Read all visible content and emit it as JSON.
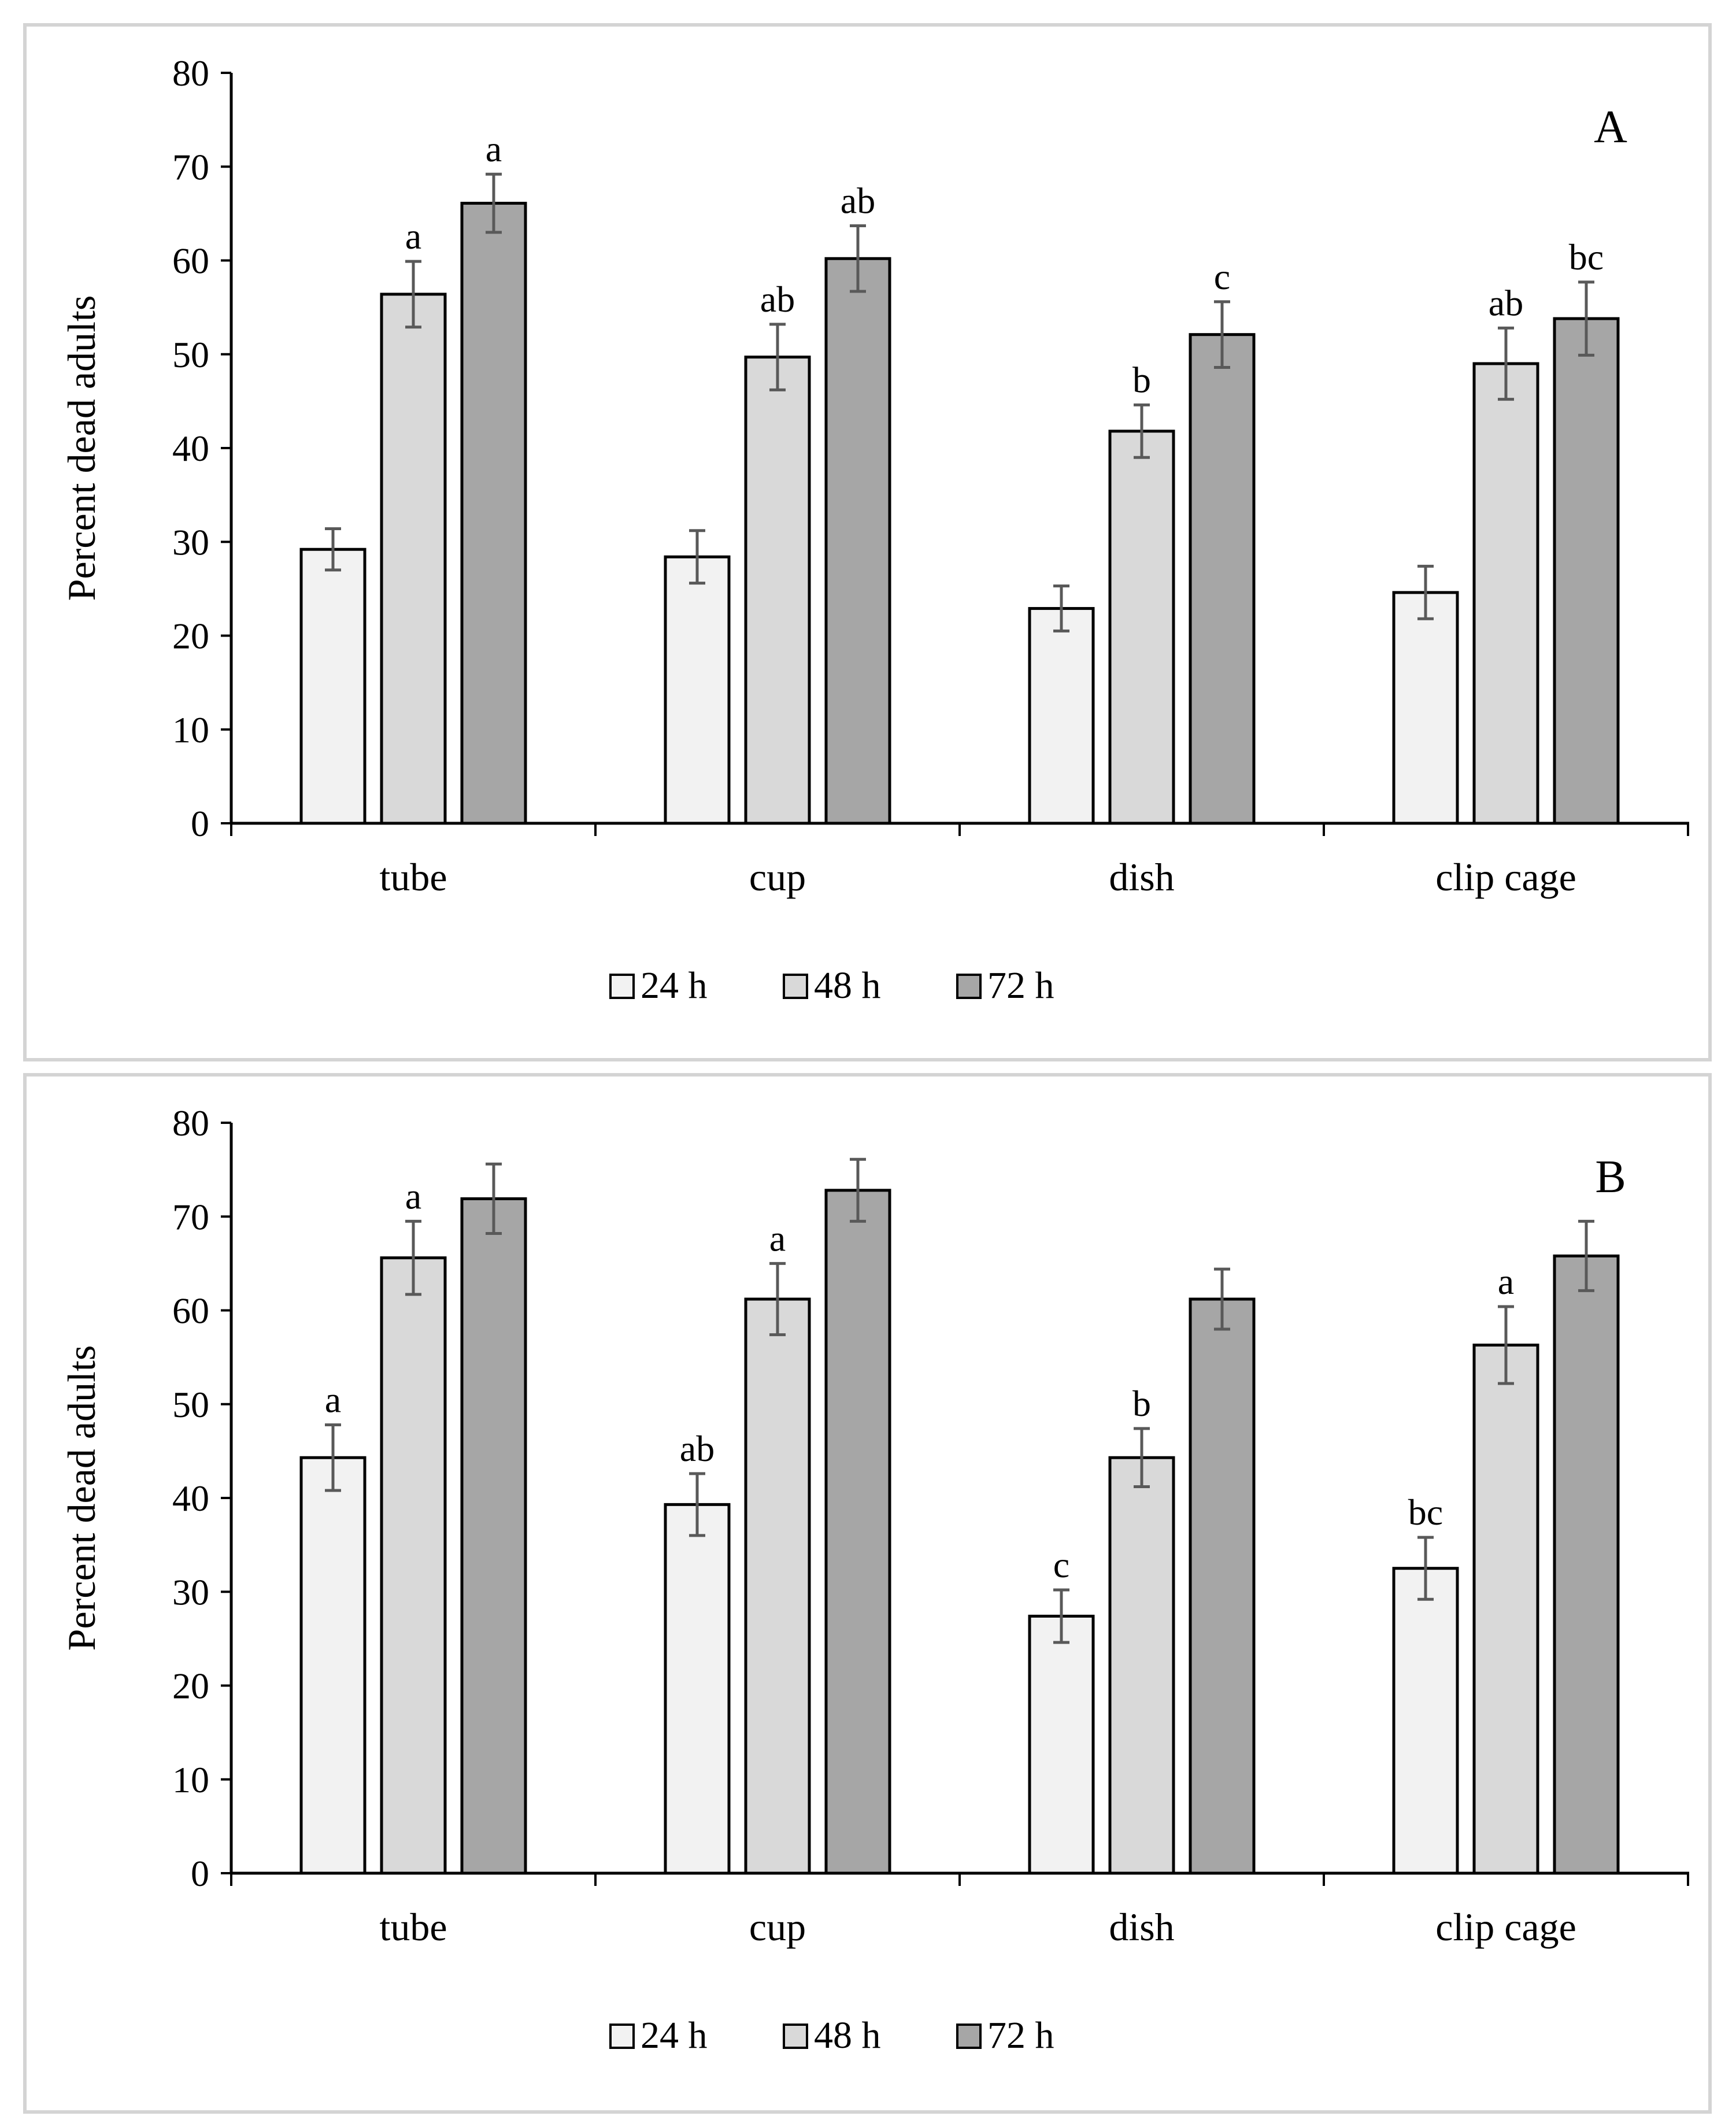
{
  "colors": {
    "series_24h": "#f2f2f2",
    "series_48h": "#d9d9d9",
    "series_72h": "#a6a6a6",
    "bar_stroke": "#000000",
    "error_bar": "#595959",
    "frame": "#d4d4d4"
  },
  "chart_data": [
    {
      "type": "bar",
      "panel_label": "A",
      "title": "",
      "xlabel": "",
      "ylabel": "Percent dead adults",
      "ylim": [
        0,
        80
      ],
      "yticks": [
        0,
        10,
        20,
        30,
        40,
        50,
        60,
        70,
        80
      ],
      "grid": false,
      "legend_position": "bottom-center",
      "categories": [
        "tube",
        "cup",
        "dish",
        "clip cage"
      ],
      "series": [
        {
          "name": "24 h",
          "values": [
            29.2,
            28.4,
            22.9,
            24.6
          ],
          "errors": [
            2.2,
            2.8,
            2.4,
            2.8
          ],
          "labels": [
            "",
            "",
            "",
            ""
          ]
        },
        {
          "name": "48 h",
          "values": [
            56.4,
            49.7,
            41.8,
            49.0
          ],
          "errors": [
            3.5,
            3.5,
            2.8,
            3.8
          ],
          "labels": [
            "a",
            "ab",
            "b",
            "ab"
          ]
        },
        {
          "name": "72 h",
          "values": [
            66.1,
            60.2,
            52.1,
            53.8
          ],
          "errors": [
            3.1,
            3.5,
            3.5,
            3.9
          ],
          "labels": [
            "a",
            "ab",
            "c",
            "bc"
          ]
        }
      ]
    },
    {
      "type": "bar",
      "panel_label": "B",
      "title": "",
      "xlabel": "",
      "ylabel": "Percent dead adults",
      "ylim": [
        0,
        80
      ],
      "yticks": [
        0,
        10,
        20,
        30,
        40,
        50,
        60,
        70,
        80
      ],
      "grid": false,
      "legend_position": "bottom-center",
      "categories": [
        "tube",
        "cup",
        "dish",
        "clip cage"
      ],
      "series": [
        {
          "name": "24 h",
          "values": [
            44.3,
            39.3,
            27.4,
            32.5
          ],
          "errors": [
            3.5,
            3.3,
            2.8,
            3.3
          ],
          "labels": [
            "a",
            "ab",
            "c",
            "bc"
          ]
        },
        {
          "name": "48 h",
          "values": [
            65.6,
            61.2,
            44.3,
            56.3
          ],
          "errors": [
            3.9,
            3.8,
            3.1,
            4.1
          ],
          "labels": [
            "a",
            "a",
            "b",
            "a"
          ]
        },
        {
          "name": "72 h",
          "values": [
            71.9,
            72.8,
            61.2,
            65.8
          ],
          "errors": [
            3.7,
            3.3,
            3.2,
            3.7
          ],
          "labels": [
            "",
            "",
            "",
            ""
          ]
        }
      ]
    }
  ]
}
